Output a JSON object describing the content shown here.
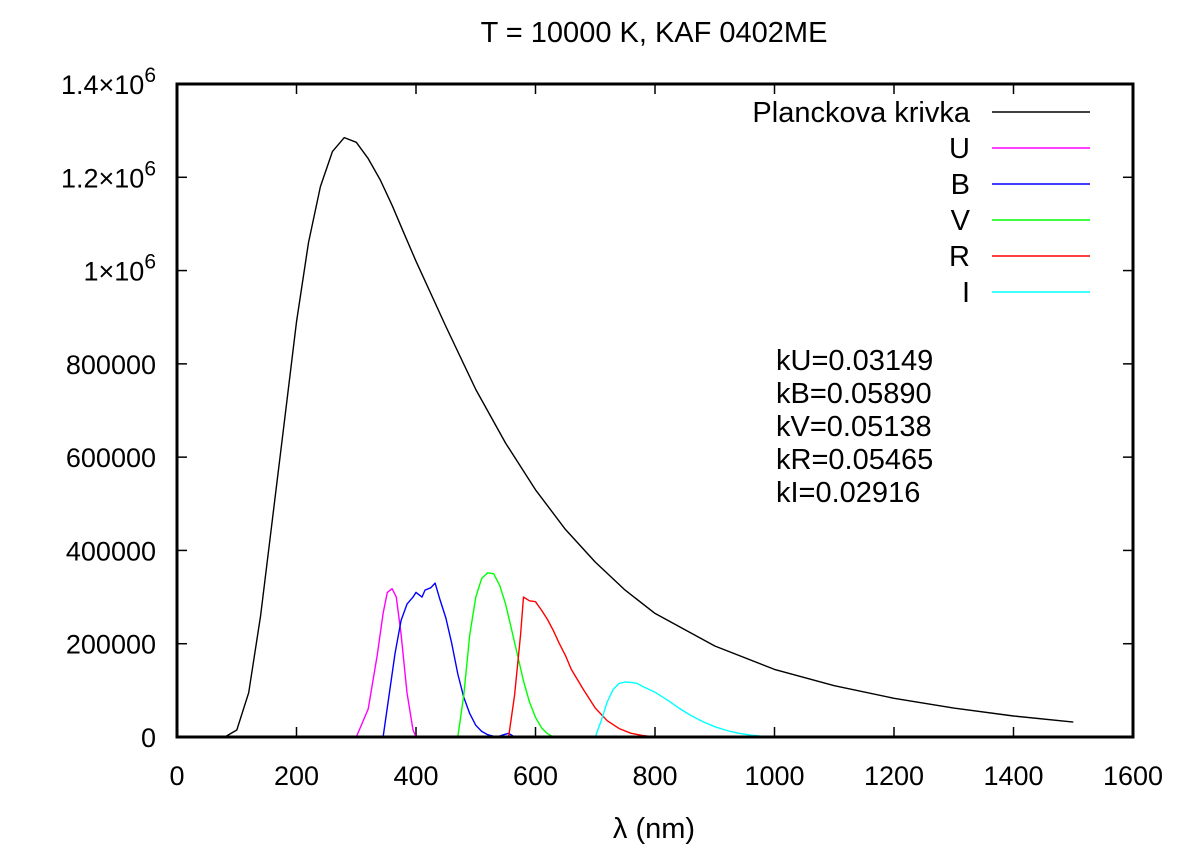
{
  "chart_data": {
    "type": "line",
    "title": "T = 10000 K, KAF 0402ME",
    "xlabel": "λ (nm)",
    "ylabel": "",
    "xlim": [
      0,
      1600
    ],
    "ylim": [
      0,
      1400000
    ],
    "x_ticks": [
      "0",
      "200",
      "400",
      "600",
      "800",
      "1000",
      "1200",
      "1400",
      "1600"
    ],
    "y_ticks": [
      {
        "value": 0,
        "mantissa": "0",
        "exp": ""
      },
      {
        "value": 200000,
        "mantissa": "200000",
        "exp": ""
      },
      {
        "value": 400000,
        "mantissa": "400000",
        "exp": ""
      },
      {
        "value": 600000,
        "mantissa": "600000",
        "exp": ""
      },
      {
        "value": 800000,
        "mantissa": "800000",
        "exp": ""
      },
      {
        "value": 1000000,
        "mantissa": "1×10",
        "exp": "6"
      },
      {
        "value": 1200000,
        "mantissa": "1.2×10",
        "exp": "6"
      },
      {
        "value": 1400000,
        "mantissa": "1.4×10",
        "exp": "6"
      }
    ],
    "grid": false,
    "legend_position": "top-right",
    "series": [
      {
        "name": "Planckova krivka",
        "color": "#000000",
        "x": [
          80,
          100,
          120,
          140,
          160,
          180,
          200,
          220,
          240,
          260,
          280,
          300,
          320,
          340,
          360,
          380,
          400,
          450,
          500,
          550,
          600,
          650,
          700,
          750,
          800,
          900,
          1000,
          1100,
          1200,
          1300,
          1400,
          1500
        ],
        "y": [
          0,
          15000,
          95000,
          260000,
          470000,
          680000,
          890000,
          1060000,
          1180000,
          1255000,
          1285000,
          1275000,
          1240000,
          1195000,
          1140000,
          1080000,
          1020000,
          880000,
          745000,
          630000,
          530000,
          445000,
          375000,
          315000,
          265000,
          195000,
          145000,
          110000,
          83000,
          62000,
          45000,
          32000
        ]
      },
      {
        "name": "U",
        "color": "#ff00ff",
        "x": [
          300,
          320,
          335,
          345,
          352,
          360,
          367,
          375,
          385,
          395,
          400
        ],
        "y": [
          0,
          60000,
          175000,
          265000,
          310000,
          318000,
          300000,
          220000,
          95000,
          15000,
          0
        ]
      },
      {
        "name": "B",
        "color": "#0000ff",
        "x": [
          345,
          355,
          365,
          375,
          385,
          395,
          400,
          410,
          415,
          425,
          432,
          440,
          450,
          460,
          470,
          480,
          490,
          500,
          510,
          520,
          535,
          545,
          555,
          565
        ],
        "y": [
          0,
          90000,
          180000,
          250000,
          285000,
          300000,
          310000,
          300000,
          315000,
          320000,
          330000,
          295000,
          255000,
          200000,
          135000,
          85000,
          50000,
          25000,
          12000,
          5000,
          0,
          4000,
          8000,
          0
        ]
      },
      {
        "name": "V",
        "color": "#00ff00",
        "x": [
          470,
          480,
          490,
          500,
          510,
          520,
          530,
          540,
          550,
          560,
          570,
          580,
          590,
          600,
          610,
          620,
          630
        ],
        "y": [
          0,
          90000,
          220000,
          300000,
          340000,
          352000,
          350000,
          325000,
          285000,
          230000,
          175000,
          120000,
          75000,
          42000,
          20000,
          7000,
          0
        ]
      },
      {
        "name": "R",
        "color": "#ff0000",
        "x": [
          555,
          565,
          575,
          580,
          590,
          600,
          610,
          620,
          630,
          640,
          650,
          660,
          680,
          700,
          720,
          740,
          760,
          780,
          800
        ],
        "y": [
          0,
          90000,
          220000,
          300000,
          292000,
          290000,
          272000,
          252000,
          228000,
          200000,
          175000,
          145000,
          102000,
          62000,
          35000,
          18000,
          8000,
          3000,
          0
        ]
      },
      {
        "name": "I",
        "color": "#00ffff",
        "x": [
          700,
          710,
          720,
          730,
          740,
          750,
          760,
          770,
          780,
          790,
          800,
          820,
          840,
          860,
          880,
          900,
          920,
          940,
          960,
          980,
          1000
        ],
        "y": [
          0,
          35000,
          75000,
          102000,
          115000,
          118000,
          117000,
          115000,
          108000,
          102000,
          96000,
          80000,
          62000,
          46000,
          33000,
          22000,
          14000,
          8000,
          4000,
          1500,
          0
        ]
      }
    ],
    "annotations": [
      "kU=0.03149",
      "kB=0.05890",
      "kV=0.05138",
      "kR=0.05465",
      "kI=0.02916"
    ]
  }
}
